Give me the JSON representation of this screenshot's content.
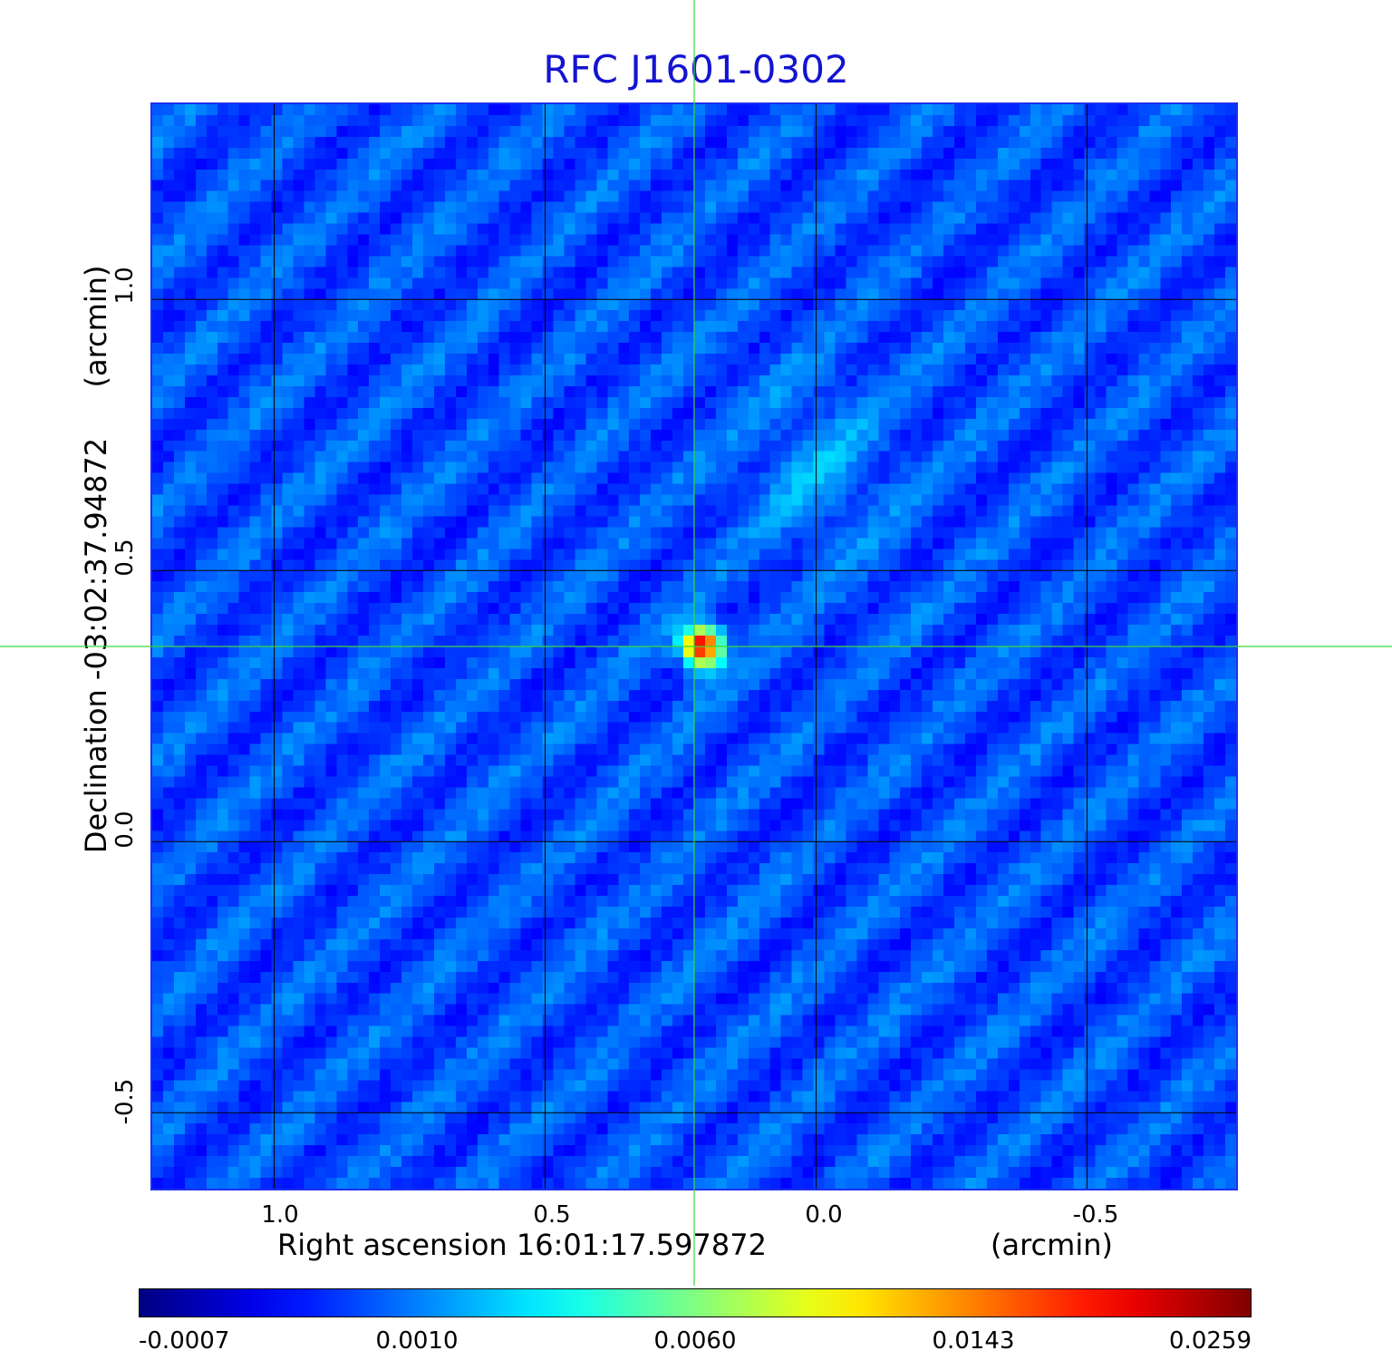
{
  "chart_data": {
    "type": "heatmap",
    "title": "RFC J1601-0302",
    "xlabel": "Right ascension  16:01:17.597872",
    "x_unit": "(arcmin)",
    "ylabel": "Declination  -03:02:37.94872",
    "y_unit": "(arcmin)",
    "xlim": [
      1.225,
      -0.775
    ],
    "ylim": [
      -0.64,
      1.36
    ],
    "x_ticks": [
      "1.0",
      "0.5",
      "0.0",
      "-0.5"
    ],
    "x_tick_values": [
      1.0,
      0.5,
      0.0,
      -0.5
    ],
    "y_ticks": [
      "1.0",
      "0.5",
      "0.0",
      "-0.5"
    ],
    "y_tick_values": [
      1.0,
      0.5,
      0.0,
      -0.5
    ],
    "grid": true,
    "colormap": "jet",
    "colorbar_ticks": [
      "-0.0007",
      "0.0010",
      "0.0060",
      "0.0143",
      "0.0259"
    ],
    "source_peak": {
      "x": 0.22,
      "y": 0.37,
      "value": 0.0259
    },
    "crosshair": {
      "x": 0.225,
      "y": 0.36
    },
    "colors": {
      "title": "#1414d2",
      "frame": "#1f2ff0",
      "crosshair": "#3ad83a",
      "grid": "#000000"
    }
  }
}
